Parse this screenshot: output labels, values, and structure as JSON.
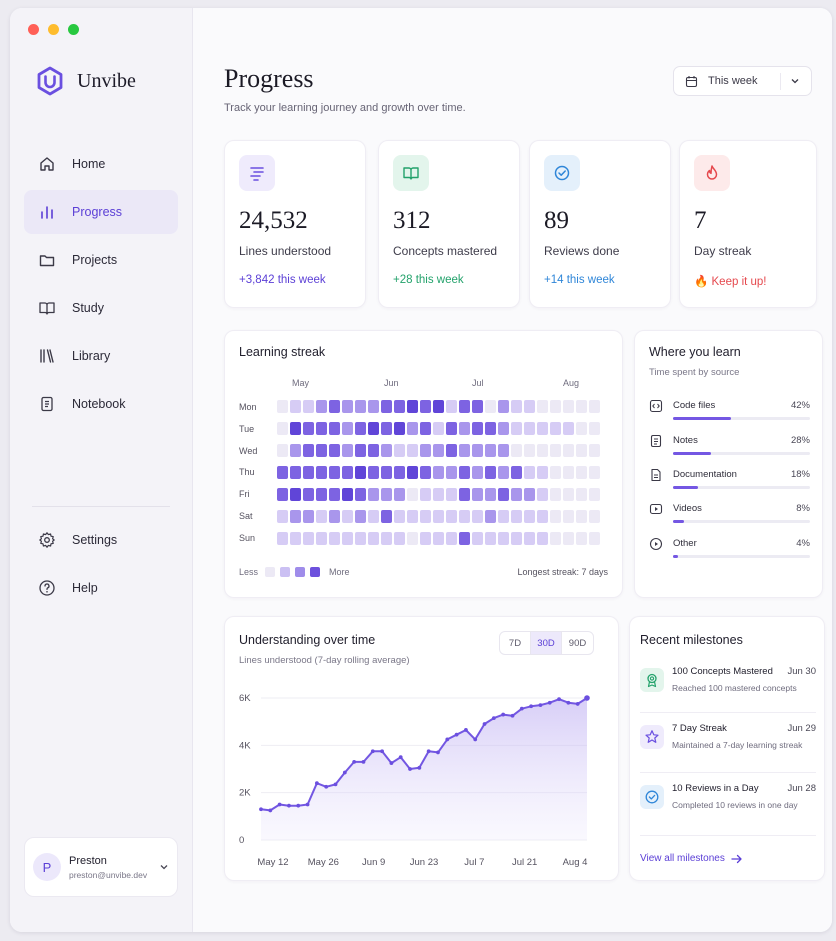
{
  "app": {
    "name": "Unvibe"
  },
  "window_dots": [
    "#ff5f57",
    "#febc2e",
    "#28c840"
  ],
  "sidebar": {
    "items": [
      {
        "label": "Home",
        "icon": "home-icon"
      },
      {
        "label": "Progress",
        "icon": "bar-chart-icon",
        "active": true
      },
      {
        "label": "Projects",
        "icon": "folder-icon"
      },
      {
        "label": "Study",
        "icon": "book-open-icon"
      },
      {
        "label": "Library",
        "icon": "library-icon"
      },
      {
        "label": "Notebook",
        "icon": "notebook-icon"
      }
    ],
    "bottom": [
      {
        "label": "Settings",
        "icon": "gear-icon"
      },
      {
        "label": "Help",
        "icon": "help-icon"
      }
    ],
    "user": {
      "initial": "P",
      "name": "Preston",
      "email": "preston@unvibe.dev"
    }
  },
  "header": {
    "title": "Progress",
    "subtitle": "Track your learning journey and growth over time.",
    "range": "This week"
  },
  "stats": [
    {
      "value": "24,532",
      "label": "Lines understood",
      "delta": "+3,842 this week",
      "color": "#5b3fd6",
      "icon": "list-lines-icon"
    },
    {
      "value": "312",
      "label": "Concepts mastered",
      "delta": "+28 this week",
      "color": "#23a26b",
      "icon": "book-open-icon"
    },
    {
      "value": "89",
      "label": "Reviews done",
      "delta": "+14 this week",
      "color": "#2f86d8",
      "icon": "check-badge-icon"
    },
    {
      "value": "7",
      "label": "Day streak",
      "delta": "🔥 Keep it up!",
      "color": "#e5484d",
      "icon": "flame-icon"
    }
  ],
  "streak": {
    "title": "Learning streak",
    "months": [
      "May",
      "Jun",
      "Jul",
      "Aug"
    ],
    "days": [
      "Mon",
      "Tue",
      "Wed",
      "Thu",
      "Fri",
      "Sat",
      "Sun"
    ],
    "legend_less": "Less",
    "legend_more": "More",
    "longest": "Longest streak: 7 days",
    "levels": [
      "0112322233434133021100000",
      "0433323434231323321111100",
      "0233323321122322220000000",
      "3333334333432232323110000",
      "3433343222011132232210000",
      "1221212131111111211110000",
      "1111111111011131111110000"
    ]
  },
  "sources": {
    "title": "Where you learn",
    "subtitle": "Time spent by source",
    "items": [
      {
        "name": "Code files",
        "pct": "42%",
        "value": 0.42,
        "icon": "code-file-icon"
      },
      {
        "name": "Notes",
        "pct": "28%",
        "value": 0.28,
        "icon": "note-icon"
      },
      {
        "name": "Documentation",
        "pct": "18%",
        "value": 0.18,
        "icon": "document-icon"
      },
      {
        "name": "Videos",
        "pct": "8%",
        "value": 0.08,
        "icon": "video-icon"
      },
      {
        "name": "Other",
        "pct": "4%",
        "value": 0.04,
        "icon": "play-icon"
      }
    ]
  },
  "chart_data": {
    "type": "area",
    "title": "Understanding over time",
    "subtitle": "Lines understood (7-day rolling average)",
    "ranges": [
      "7D",
      "30D",
      "90D"
    ],
    "active_range": "30D",
    "yticks": [
      "6K",
      "4K",
      "2K",
      "0"
    ],
    "ylim": [
      0,
      6000
    ],
    "xticks": [
      "May 12",
      "May 26",
      "Jun 9",
      "Jun 23",
      "Jul 7",
      "Jul 21",
      "Aug 4"
    ],
    "series": [
      {
        "values": [
          1300,
          1250,
          1500,
          1450,
          1450,
          1500,
          2400,
          2250,
          2350,
          2850,
          3300,
          3300,
          3750,
          3750,
          3250,
          3500,
          3000,
          3050,
          3750,
          3700,
          4250,
          4450,
          4650,
          4250,
          4900,
          5150,
          5300,
          5250,
          5550,
          5650,
          5700,
          5800,
          5950,
          5800,
          5750,
          6000
        ]
      }
    ]
  },
  "milestones": {
    "title": "Recent milestones",
    "items": [
      {
        "title": "100 Concepts Mastered",
        "date": "Jun 30",
        "desc": "Reached 100 mastered concepts",
        "icon": "award-icon"
      },
      {
        "title": "7 Day Streak",
        "date": "Jun 29",
        "desc": "Maintained a 7-day learning streak",
        "icon": "star-icon"
      },
      {
        "title": "10 Reviews in a Day",
        "date": "Jun 28",
        "desc": "Completed 10 reviews in one day",
        "icon": "check-circle-icon"
      }
    ],
    "view_all": "View all milestones"
  }
}
